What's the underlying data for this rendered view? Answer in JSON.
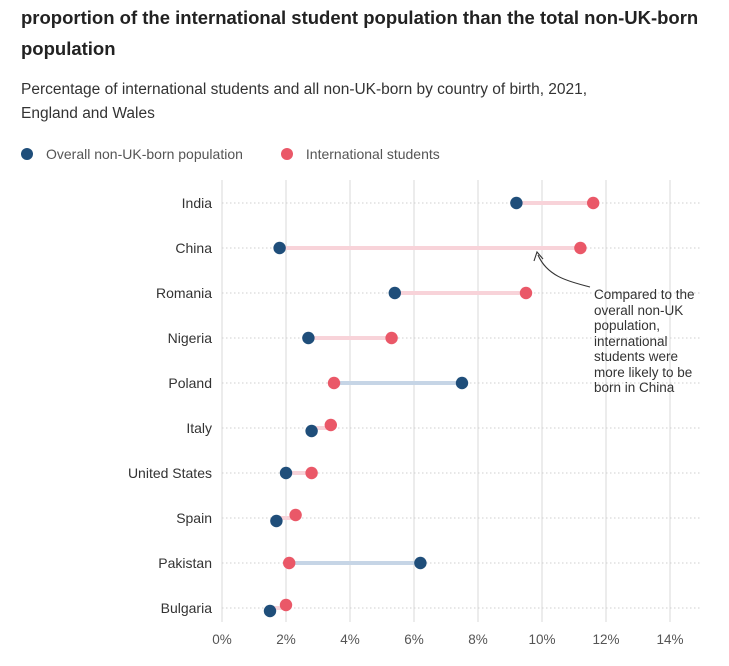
{
  "title": "proportion of the international student population than the total non-UK-born population",
  "subtitle": "Percentage of international students and all non-UK-born by country of birth, 2021, England and Wales",
  "legend": {
    "non_uk": "Overall non-UK-born population",
    "students": "International students"
  },
  "colors": {
    "non_uk": "#1f4e7a",
    "students": "#ea5868",
    "connector_students_higher": "#f8d3d9",
    "connector_non_uk_higher": "#c6d5e6",
    "grid": "#d9d9d9"
  },
  "annotation": {
    "text": "Compared to the overall non-UK population, international students were more likely to be born in China"
  },
  "chart_data": {
    "type": "dumbbell",
    "title": "proportion of the international student population than the total non-UK-born population",
    "subtitle": "Percentage of international students and all non-UK-born by country of birth, 2021, England and Wales",
    "xlim": [
      0,
      14
    ],
    "x_ticks": [
      0,
      2,
      4,
      6,
      8,
      10,
      12,
      14
    ],
    "x_tick_labels": [
      "0%",
      "2%",
      "4%",
      "6%",
      "8%",
      "10%",
      "12%",
      "14%"
    ],
    "categories": [
      "India",
      "China",
      "Romania",
      "Nigeria",
      "Poland",
      "Italy",
      "United States",
      "Spain",
      "Pakistan",
      "Bulgaria"
    ],
    "series": [
      {
        "name": "Overall non-UK-born population",
        "values": [
          9.2,
          1.8,
          5.4,
          2.7,
          7.5,
          2.8,
          2.0,
          1.7,
          6.2,
          1.5
        ]
      },
      {
        "name": "International students",
        "values": [
          11.6,
          11.2,
          9.5,
          5.3,
          3.5,
          3.4,
          2.8,
          2.3,
          2.1,
          2.0
        ]
      }
    ]
  }
}
